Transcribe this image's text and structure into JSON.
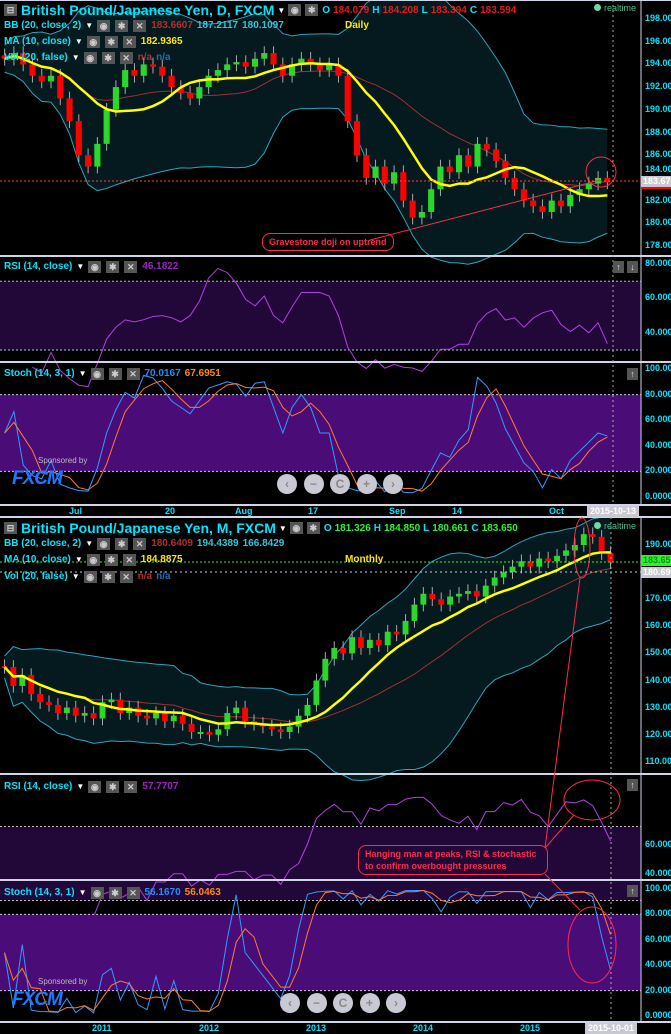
{
  "daily": {
    "title": "British Pound/Japanese Yen, D, FXCM",
    "ohlc": {
      "o_label": "O",
      "o": "184.079",
      "h_label": "H",
      "h": "184.208",
      "l_label": "L",
      "l": "183.394",
      "c_label": "C",
      "c": "183.594"
    },
    "bb": {
      "label": "BB (20, close, 2)",
      "mid": "183.6607",
      "upper": "187.2117",
      "lower": "180.1097"
    },
    "ma": {
      "label": "MA (10, close)",
      "value": "182.9365"
    },
    "vol": {
      "label": "Vol (20, false)",
      "v1": "n/a",
      "v2": "n/a"
    },
    "timeframe": "Daily",
    "realtime": "realtime",
    "price_label": "183.67",
    "price_axis": [
      "198.000",
      "196.000",
      "194.000",
      "192.000",
      "190.000",
      "188.000",
      "186.000",
      "184.000",
      "182.000",
      "180.000",
      "178.000"
    ],
    "rsi": {
      "label": "RSI (14, close)",
      "value": "46.1822",
      "axis": [
        "80.000",
        "60.000",
        "40.000"
      ]
    },
    "stoch": {
      "label": "Stoch (14, 3, 1)",
      "k": "70.0167",
      "d": "67.6951",
      "axis": [
        "100.000",
        "80.000",
        "60.000",
        "40.000",
        "20.000",
        "0.0000"
      ]
    },
    "x_axis": [
      "Jul",
      "20",
      "Aug",
      "17",
      "Sep",
      "14",
      "Oct"
    ],
    "date": "2015-10-13",
    "annotation": "Gravestone doji on uptrend"
  },
  "monthly": {
    "title": "British Pound/Japanese Yen, M, FXCM",
    "ohlc": {
      "o_label": "O",
      "o": "181.326",
      "h_label": "H",
      "h": "184.850",
      "l_label": "L",
      "l": "180.661",
      "c_label": "C",
      "c": "183.650"
    },
    "bb": {
      "label": "BB (20, close, 2)",
      "mid": "180.6409",
      "upper": "194.4389",
      "lower": "166.8429"
    },
    "ma": {
      "label": "MA (10, close)",
      "value": "184.8875"
    },
    "vol": {
      "label": "Vol (20, false)",
      "v1": "n/a",
      "v2": "n/a"
    },
    "timeframe": "Monthly",
    "realtime": "realtime",
    "price_label": "180.690",
    "price_label2": "183.650",
    "price_axis": [
      "190.000",
      "170.000",
      "160.000",
      "150.000",
      "140.000",
      "130.000",
      "120.000",
      "110.000"
    ],
    "rsi": {
      "label": "RSI (14, close)",
      "value": "57.7707",
      "axis": [
        "60.000",
        "40.000"
      ]
    },
    "stoch": {
      "label": "Stoch (14, 3, 1)",
      "k": "56.1670",
      "d": "56.0463",
      "axis": [
        "100.000",
        "80.000",
        "60.000",
        "40.000",
        "20.000",
        "0.0000"
      ]
    },
    "x_axis": [
      "2011",
      "2012",
      "2013",
      "2014",
      "2015"
    ],
    "date": "2015-10-01",
    "annotation": "Hanging man at peaks, RSI & stochastic to confirm overbought pressures"
  },
  "sponsor": {
    "text": "Sponsored by",
    "logo": "FXCM"
  },
  "nav_icons": [
    "chevron-left-icon",
    "zoom-out-icon",
    "reset-icon",
    "zoom-in-icon",
    "chevron-right-icon"
  ],
  "nav_glyphs": [
    "‹",
    "−",
    "C",
    "+",
    "›"
  ],
  "colors": {
    "bull": "#2cd62c",
    "bear": "#ff0000",
    "ma": "#ffff00",
    "bb": "#2aa6bf",
    "bb_mid": "#a03030",
    "rsi": "#b040e0",
    "stoch_k": "#2f9bff",
    "stoch_d": "#ff7a30",
    "band": "#4a0d78",
    "annotation": "#ff2a4a"
  },
  "chart_data": [
    {
      "type": "candlestick",
      "name": "British Pound/Japanese Yen, D",
      "close": [
        194.5,
        195,
        194,
        193,
        192.5,
        193,
        191,
        189,
        186,
        185,
        187,
        190,
        192,
        193.5,
        193,
        194,
        193.8,
        193,
        192,
        191.5,
        191,
        192,
        193,
        193.5,
        194,
        194.2,
        193.8,
        194.5,
        195,
        194,
        193,
        194,
        194.5,
        194,
        193.5,
        194,
        193,
        189,
        186,
        184,
        185,
        183.5,
        184.5,
        182,
        180.5,
        181,
        183,
        185,
        184.5,
        186,
        185,
        187,
        186.5,
        185.5,
        184,
        183,
        182,
        181.5,
        181,
        182,
        181.5,
        182.5,
        183,
        183.5,
        184,
        183.6
      ],
      "ylim": [
        177,
        199
      ]
    },
    {
      "type": "candlestick",
      "name": "British Pound/Japanese Yen, M",
      "close": [
        145,
        138,
        142,
        135,
        132,
        131,
        128,
        130,
        127,
        128,
        126,
        132,
        133,
        128,
        130,
        127,
        126,
        128,
        125,
        127,
        124,
        121,
        121,
        120,
        122,
        128,
        130,
        125,
        124,
        123,
        122,
        121,
        123,
        127,
        131,
        140,
        148,
        152,
        150,
        156,
        152,
        155,
        153,
        158,
        157,
        162,
        168,
        172,
        170,
        168,
        171,
        172,
        173,
        171,
        175,
        178,
        180,
        182,
        184,
        182,
        185,
        184,
        186,
        188,
        190,
        194,
        193,
        187,
        183.65
      ],
      "ylim": [
        106,
        197
      ]
    }
  ]
}
